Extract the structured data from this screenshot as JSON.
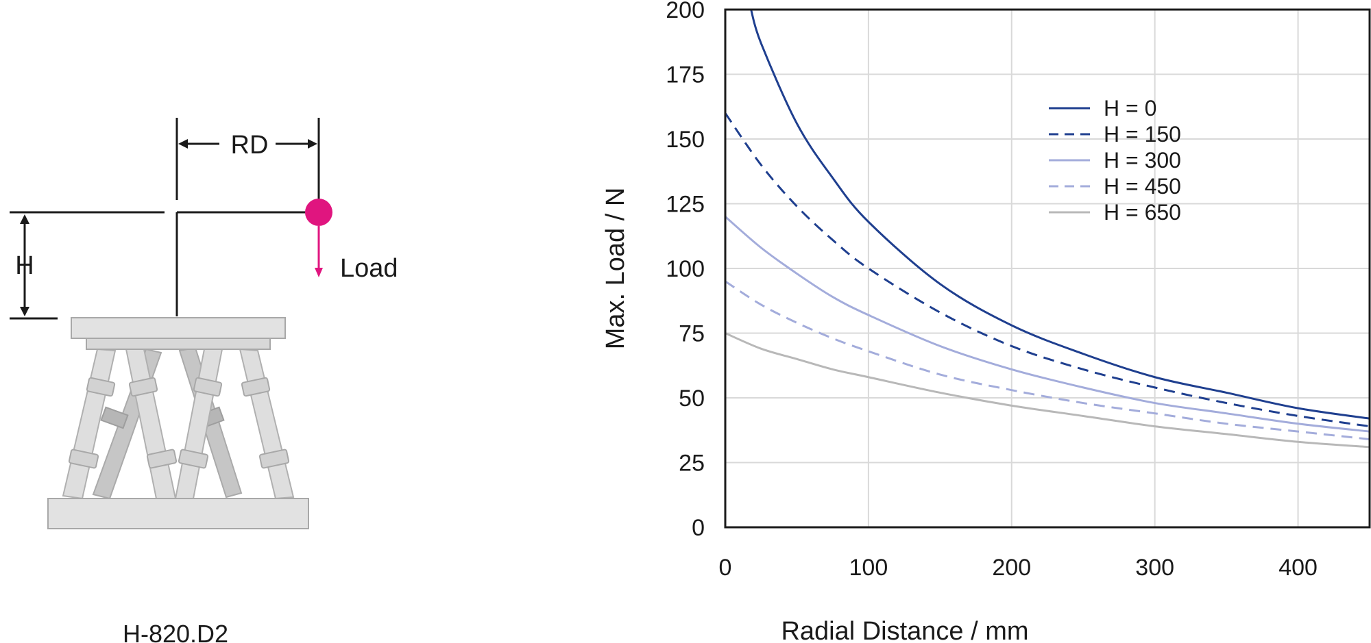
{
  "diagram": {
    "rd_label": "RD",
    "h_label": "H",
    "load_label": "Load",
    "caption": "H-820.D2",
    "load_color": "#e0157f"
  },
  "chart_data": {
    "type": "line",
    "xlabel": "Radial Distance / mm",
    "ylabel": "Max. Load / N",
    "xlim": [
      0,
      450
    ],
    "ylim": [
      0,
      200
    ],
    "xticks": [
      "0",
      "100",
      "200",
      "300",
      "400"
    ],
    "yticks": [
      "0",
      "25",
      "50",
      "75",
      "100",
      "125",
      "150",
      "175",
      "200"
    ],
    "grid": true,
    "legend_position": "top-right",
    "series": [
      {
        "name": "H = 0",
        "color": "#1f3f8f",
        "dash": "solid",
        "x": [
          18,
          25,
          50,
          75,
          100,
          150,
          200,
          250,
          300,
          350,
          400,
          450
        ],
        "y": [
          200,
          187,
          156,
          135,
          118,
          94,
          78,
          67,
          58,
          52,
          46,
          42
        ]
      },
      {
        "name": "H = 150",
        "color": "#1f3f8f",
        "dash": "dashed",
        "x": [
          0,
          25,
          50,
          75,
          100,
          150,
          200,
          250,
          300,
          350,
          400,
          450
        ],
        "y": [
          160,
          140,
          124,
          111,
          100,
          83,
          70,
          61,
          54,
          48,
          43,
          39
        ]
      },
      {
        "name": "H = 300",
        "color": "#a3acdb",
        "dash": "solid",
        "x": [
          0,
          25,
          50,
          75,
          100,
          150,
          200,
          250,
          300,
          350,
          400,
          450
        ],
        "y": [
          120,
          108,
          98,
          89,
          82,
          70,
          61,
          54,
          48,
          44,
          40,
          37
        ]
      },
      {
        "name": "H = 450",
        "color": "#a3acdb",
        "dash": "dashed",
        "x": [
          0,
          25,
          50,
          75,
          100,
          150,
          200,
          250,
          300,
          350,
          400,
          450
        ],
        "y": [
          95,
          86,
          79,
          73,
          68,
          59,
          53,
          48,
          44,
          40,
          37,
          34
        ]
      },
      {
        "name": "H = 650",
        "color": "#b8b8b8",
        "dash": "solid",
        "x": [
          0,
          25,
          50,
          75,
          100,
          150,
          200,
          250,
          300,
          350,
          400,
          450
        ],
        "y": [
          75,
          69,
          65,
          61,
          58,
          52,
          47,
          43,
          39,
          36,
          33,
          31
        ]
      }
    ]
  }
}
